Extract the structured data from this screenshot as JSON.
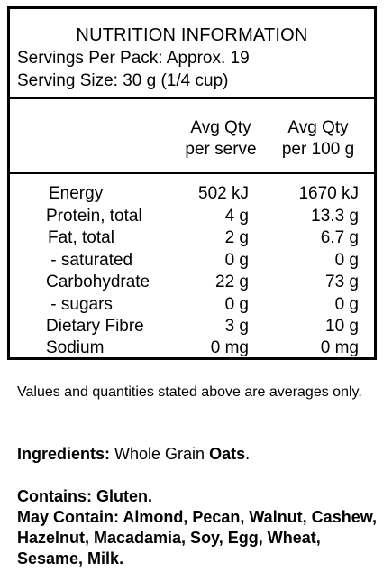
{
  "panel": {
    "title": "NUTRITION INFORMATION",
    "servings_per_pack": "Servings Per Pack: Approx. 19",
    "serving_size": "Serving Size: 30 g (1/4 cup)",
    "col_serve_line1": "Avg Qty",
    "col_serve_line2": "per serve",
    "col_100g_line1": "Avg Qty",
    "col_100g_line2": "per 100 g",
    "rows": [
      {
        "name": "Energy",
        "per_serve": "502 kJ",
        "per_100g": "1670 kJ"
      },
      {
        "name": "Protein, total",
        "per_serve": "4 g",
        "per_100g": "13.3 g"
      },
      {
        "name": "Fat, total",
        "per_serve": "2 g",
        "per_100g": "6.7 g"
      },
      {
        "name": " - saturated",
        "per_serve": "0 g",
        "per_100g": "0 g"
      },
      {
        "name": "Carbohydrate",
        "per_serve": "22 g",
        "per_100g": "73 g"
      },
      {
        "name": " - sugars",
        "per_serve": "0 g",
        "per_100g": "0 g"
      },
      {
        "name": "Dietary Fibre",
        "per_serve": "3 g",
        "per_100g": "10 g"
      },
      {
        "name": "Sodium",
        "per_serve": "0 mg",
        "per_100g": "0 mg"
      }
    ]
  },
  "notes": {
    "averages": "Values and quantities stated above are averages only."
  },
  "ingredients": {
    "label": "Ingredients:",
    "text_before": " Whole Grain ",
    "highlight": "Oats",
    "text_after": "."
  },
  "allergens": {
    "contains": "Contains: Gluten.",
    "may_contain": "May Contain: Almond, Pecan, Walnut, Cashew, Hazelnut, Macadamia, Soy, Egg, Wheat, Sesame, Milk."
  }
}
